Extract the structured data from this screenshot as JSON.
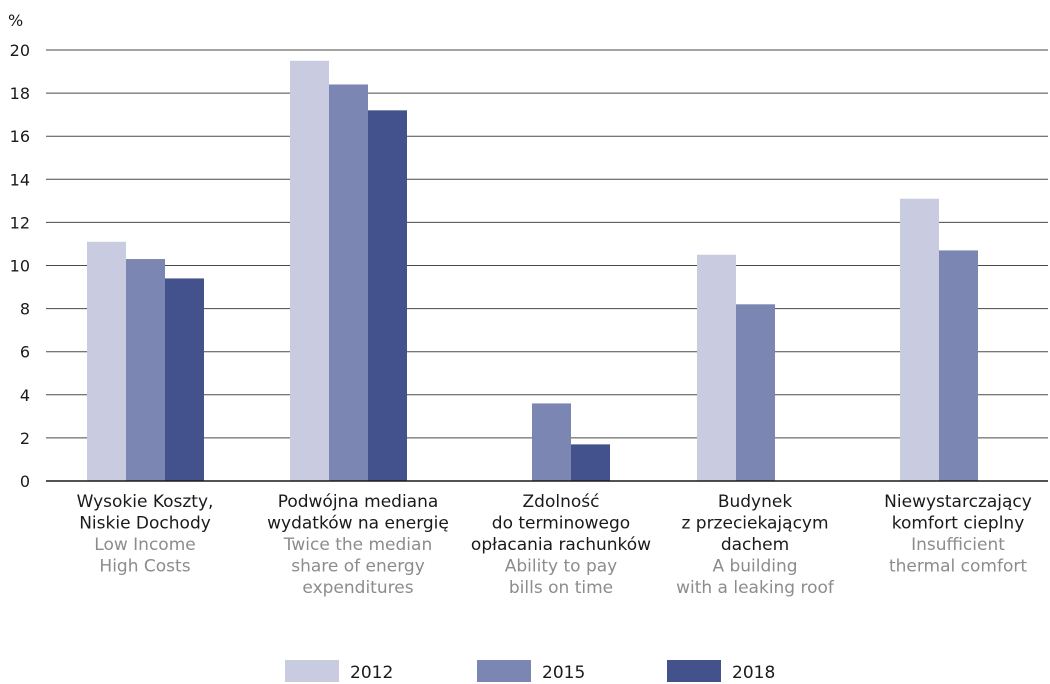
{
  "chart_data": {
    "type": "bar",
    "unit_label": "%",
    "ylim": [
      0,
      20
    ],
    "yticks": [
      0,
      2,
      4,
      6,
      8,
      10,
      12,
      14,
      16,
      18,
      20
    ],
    "grid": true,
    "legend_position": "bottom",
    "categories": [
      {
        "label_pl": [
          "Wysokie Koszty,",
          "Niskie Dochody"
        ],
        "label_en": [
          "Low Income",
          "High Costs"
        ]
      },
      {
        "label_pl": [
          "Podwójna mediana",
          "wydatków na energię"
        ],
        "label_en": [
          "Twice the median",
          "share of energy",
          "expenditures"
        ]
      },
      {
        "label_pl": [
          "Zdolność",
          "do terminowego",
          "opłacania rachunków"
        ],
        "label_en": [
          "Ability to pay",
          "bills on time"
        ]
      },
      {
        "label_pl": [
          "Budynek",
          "z przeciekającym",
          "dachem"
        ],
        "label_en": [
          "A building",
          "with a leaking roof"
        ]
      },
      {
        "label_pl": [
          "Niewystarczający",
          "komfort cieplny"
        ],
        "label_en": [
          "Insufficient",
          "thermal comfort"
        ]
      }
    ],
    "series": [
      {
        "name": "2012",
        "color": "#c9cce0",
        "values": [
          11.1,
          19.5,
          null,
          10.5,
          13.1
        ]
      },
      {
        "name": "2015",
        "color": "#7b87b2",
        "values": [
          10.3,
          18.4,
          3.6,
          8.2,
          10.7
        ]
      },
      {
        "name": "2018",
        "color": "#43528c",
        "values": [
          9.4,
          17.2,
          1.7,
          null,
          null
        ]
      }
    ]
  }
}
